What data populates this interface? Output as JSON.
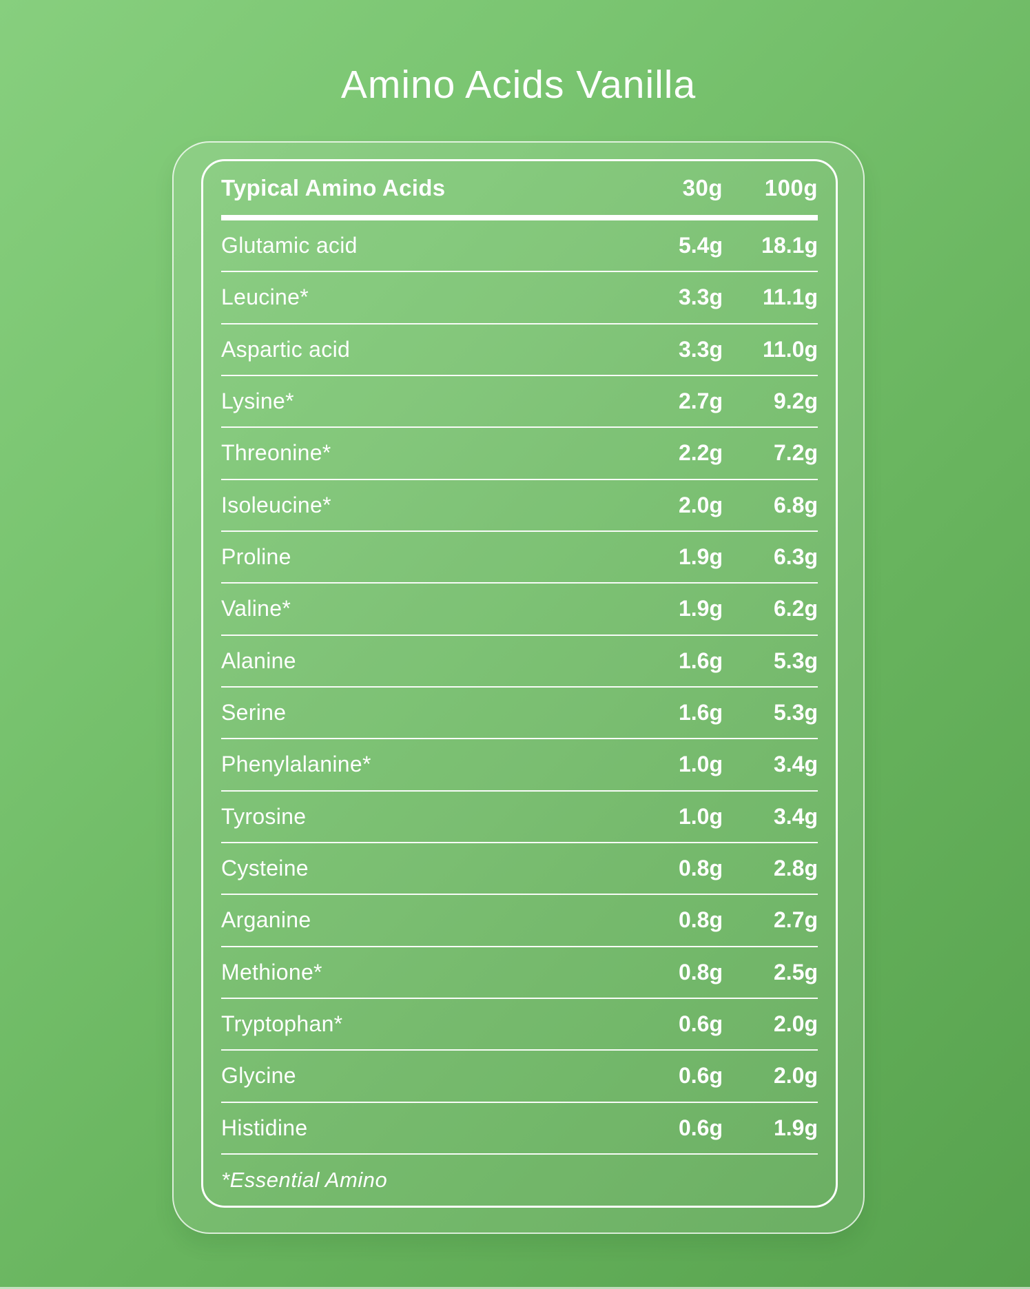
{
  "title": "Amino Acids Vanilla",
  "table": {
    "header": {
      "label": "Typical Amino Acids",
      "col_30": "30g",
      "col_100": "100g"
    },
    "rows": [
      {
        "name": "Glutamic acid",
        "g30": "5.4g",
        "g100": "18.1g"
      },
      {
        "name": "Leucine*",
        "g30": "3.3g",
        "g100": "11.1g"
      },
      {
        "name": "Aspartic acid",
        "g30": "3.3g",
        "g100": "11.0g"
      },
      {
        "name": "Lysine*",
        "g30": "2.7g",
        "g100": "9.2g"
      },
      {
        "name": "Threonine*",
        "g30": "2.2g",
        "g100": "7.2g"
      },
      {
        "name": "Isoleucine*",
        "g30": "2.0g",
        "g100": "6.8g"
      },
      {
        "name": "Proline",
        "g30": "1.9g",
        "g100": "6.3g"
      },
      {
        "name": "Valine*",
        "g30": "1.9g",
        "g100": "6.2g"
      },
      {
        "name": "Alanine",
        "g30": "1.6g",
        "g100": "5.3g"
      },
      {
        "name": "Serine",
        "g30": "1.6g",
        "g100": "5.3g"
      },
      {
        "name": "Phenylalanine*",
        "g30": "1.0g",
        "g100": "3.4g"
      },
      {
        "name": "Tyrosine",
        "g30": "1.0g",
        "g100": "3.4g"
      },
      {
        "name": "Cysteine",
        "g30": "0.8g",
        "g100": "2.8g"
      },
      {
        "name": "Arganine",
        "g30": "0.8g",
        "g100": "2.7g"
      },
      {
        "name": "Methione*",
        "g30": "0.8g",
        "g100": "2.5g"
      },
      {
        "name": "Tryptophan*",
        "g30": "0.6g",
        "g100": "2.0g"
      },
      {
        "name": "Glycine",
        "g30": "0.6g",
        "g100": "2.0g"
      },
      {
        "name": "Histidine",
        "g30": "0.6g",
        "g100": "1.9g"
      }
    ],
    "footnote": "*Essential Amino"
  },
  "colors": {
    "background_top_left": "#87cf7e",
    "background_bottom_right": "#57a24e",
    "panel_fill": "rgba(255,255,255,0.10)",
    "border_and_text": "#ffffff"
  }
}
